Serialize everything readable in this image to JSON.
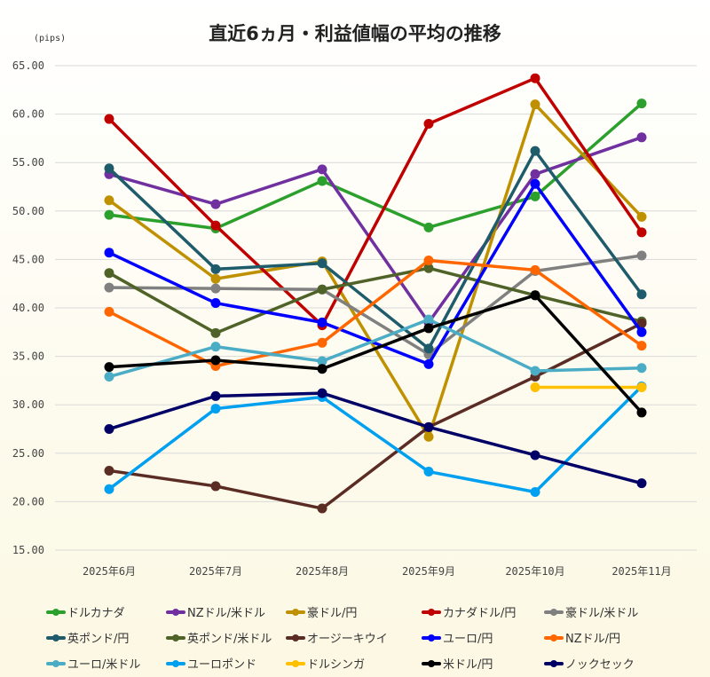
{
  "chart_data": {
    "type": "line",
    "title": "直近6ヵ月・利益値幅の平均の推移",
    "ylabel": "(pips)",
    "xlabel": "",
    "ylim": [
      15,
      65
    ],
    "yticks": [
      "15.00",
      "20.00",
      "25.00",
      "30.00",
      "35.00",
      "40.00",
      "45.00",
      "50.00",
      "55.00",
      "60.00",
      "65.00"
    ],
    "categories": [
      "2025年6月",
      "2025年7月",
      "2025年8月",
      "2025年9月",
      "2025年10月",
      "2025年11月"
    ],
    "grid": true,
    "legend_position": "bottom",
    "series": [
      {
        "name": "ドルカナダ",
        "color": "#2ca02c",
        "values": [
          49.6,
          48.2,
          53.1,
          48.3,
          51.5,
          61.1
        ]
      },
      {
        "name": "NZドル/米ドル",
        "color": "#7030a0",
        "values": [
          53.8,
          50.7,
          54.3,
          38.5,
          53.8,
          57.6
        ]
      },
      {
        "name": "豪ドル/円",
        "color": "#bf9000",
        "values": [
          51.1,
          43.0,
          44.8,
          26.7,
          61.0,
          49.4
        ]
      },
      {
        "name": "カナダドル/円",
        "color": "#c00000",
        "values": [
          59.5,
          48.5,
          38.2,
          59.0,
          63.7,
          47.8
        ]
      },
      {
        "name": "豪ドル/米ドル",
        "color": "#808080",
        "values": [
          42.1,
          42.0,
          41.9,
          35.2,
          43.8,
          45.4
        ]
      },
      {
        "name": "英ポンド/円",
        "color": "#1f5c6b",
        "values": [
          54.4,
          44.0,
          44.6,
          35.8,
          56.2,
          41.4
        ]
      },
      {
        "name": "英ポンド/米ドル",
        "color": "#4f6228",
        "values": [
          43.6,
          37.4,
          41.9,
          44.1,
          41.3,
          38.6
        ]
      },
      {
        "name": "オージーキウイ",
        "color": "#5b2c23",
        "values": [
          23.2,
          21.6,
          19.3,
          27.7,
          32.9,
          38.4
        ]
      },
      {
        "name": "ユーロ/円",
        "color": "#0000ff",
        "values": [
          45.7,
          40.5,
          38.5,
          34.2,
          52.8,
          37.5
        ]
      },
      {
        "name": "NZドル/円",
        "color": "#ff6600",
        "values": [
          39.6,
          34.0,
          36.4,
          44.9,
          43.9,
          36.1
        ]
      },
      {
        "name": "ユーロ/米ドル",
        "color": "#4bacc6",
        "values": [
          32.9,
          36.0,
          34.5,
          38.8,
          33.5,
          33.8
        ]
      },
      {
        "name": "ユーロポンド",
        "color": "#00a0f0",
        "values": [
          21.3,
          29.6,
          30.8,
          23.1,
          21.0,
          31.9
        ]
      },
      {
        "name": "ドルシンガ",
        "color": "#ffc000",
        "values": [
          null,
          null,
          null,
          null,
          31.8,
          31.8
        ]
      },
      {
        "name": "米ドル/円",
        "color": "#000000",
        "values": [
          33.9,
          34.6,
          33.7,
          37.9,
          41.3,
          29.2
        ]
      },
      {
        "name": "ノックセック",
        "color": "#000066",
        "values": [
          27.5,
          30.9,
          31.2,
          27.7,
          24.8,
          21.9
        ]
      }
    ]
  }
}
